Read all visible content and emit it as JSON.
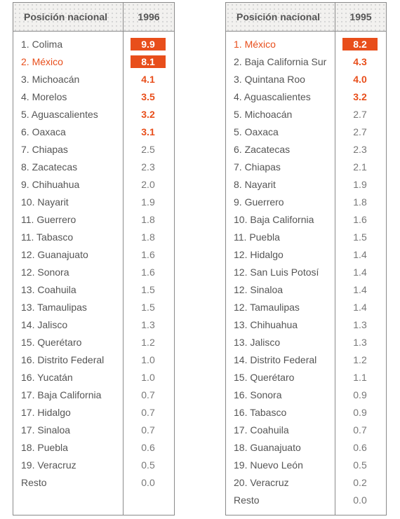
{
  "colors": {
    "accent": "#e84e1b",
    "text": "#555555",
    "muted": "#777777",
    "border": "#8a8a8a"
  },
  "tables": [
    {
      "header_label": "Posición nacional",
      "year": "1996",
      "rows": [
        {
          "name": "1. Colima",
          "value": "9.9",
          "style": "box",
          "hl": false
        },
        {
          "name": "2. México",
          "value": "8.1",
          "style": "box",
          "hl": true
        },
        {
          "name": "3. Michoacán",
          "value": "4.1",
          "style": "bold",
          "hl": false
        },
        {
          "name": "4. Morelos",
          "value": "3.5",
          "style": "bold",
          "hl": false
        },
        {
          "name": "5. Aguascalientes",
          "value": "3.2",
          "style": "bold",
          "hl": false
        },
        {
          "name": "6. Oaxaca",
          "value": "3.1",
          "style": "bold",
          "hl": false
        },
        {
          "name": "7. Chiapas",
          "value": "2.5",
          "style": "normal",
          "hl": false
        },
        {
          "name": "8. Zacatecas",
          "value": "2.3",
          "style": "normal",
          "hl": false
        },
        {
          "name": "9. Chihuahua",
          "value": "2.0",
          "style": "normal",
          "hl": false
        },
        {
          "name": "10. Nayarit",
          "value": "1.9",
          "style": "normal",
          "hl": false
        },
        {
          "name": "11. Guerrero",
          "value": "1.8",
          "style": "normal",
          "hl": false
        },
        {
          "name": "11. Tabasco",
          "value": "1.8",
          "style": "normal",
          "hl": false
        },
        {
          "name": "12. Guanajuato",
          "value": "1.6",
          "style": "normal",
          "hl": false
        },
        {
          "name": "12. Sonora",
          "value": "1.6",
          "style": "normal",
          "hl": false
        },
        {
          "name": "13. Coahuila",
          "value": "1.5",
          "style": "normal",
          "hl": false
        },
        {
          "name": "13. Tamaulipas",
          "value": "1.5",
          "style": "normal",
          "hl": false
        },
        {
          "name": "14. Jalisco",
          "value": "1.3",
          "style": "normal",
          "hl": false
        },
        {
          "name": "15. Querétaro",
          "value": "1.2",
          "style": "normal",
          "hl": false
        },
        {
          "name": "16. Distrito Federal",
          "value": "1.0",
          "style": "normal",
          "hl": false
        },
        {
          "name": "16. Yucatán",
          "value": "1.0",
          "style": "normal",
          "hl": false
        },
        {
          "name": "17. Baja California",
          "value": "0.7",
          "style": "normal",
          "hl": false
        },
        {
          "name": "17. Hidalgo",
          "value": "0.7",
          "style": "normal",
          "hl": false
        },
        {
          "name": "17. Sinaloa",
          "value": "0.7",
          "style": "normal",
          "hl": false
        },
        {
          "name": "18. Puebla",
          "value": "0.6",
          "style": "normal",
          "hl": false
        },
        {
          "name": "19. Veracruz",
          "value": "0.5",
          "style": "normal",
          "hl": false
        },
        {
          "name": "Resto",
          "value": "0.0",
          "style": "normal",
          "hl": false
        }
      ]
    },
    {
      "header_label": "Posición nacional",
      "year": "1995",
      "rows": [
        {
          "name": "1. México",
          "value": "8.2",
          "style": "box",
          "hl": true
        },
        {
          "name": "2. Baja California Sur",
          "value": "4.3",
          "style": "bold",
          "hl": false
        },
        {
          "name": "3. Quintana Roo",
          "value": "4.0",
          "style": "bold",
          "hl": false
        },
        {
          "name": "4. Aguascalientes",
          "value": "3.2",
          "style": "bold",
          "hl": false
        },
        {
          "name": "5. Michoacán",
          "value": "2.7",
          "style": "normal",
          "hl": false
        },
        {
          "name": "5. Oaxaca",
          "value": "2.7",
          "style": "normal",
          "hl": false
        },
        {
          "name": "6. Zacatecas",
          "value": "2.3",
          "style": "normal",
          "hl": false
        },
        {
          "name": "7. Chiapas",
          "value": "2.1",
          "style": "normal",
          "hl": false
        },
        {
          "name": "8. Nayarit",
          "value": "1.9",
          "style": "normal",
          "hl": false
        },
        {
          "name": "9. Guerrero",
          "value": "1.8",
          "style": "normal",
          "hl": false
        },
        {
          "name": "10. Baja California",
          "value": "1.6",
          "style": "normal",
          "hl": false
        },
        {
          "name": "11. Puebla",
          "value": "1.5",
          "style": "normal",
          "hl": false
        },
        {
          "name": "12. Hidalgo",
          "value": "1.4",
          "style": "normal",
          "hl": false
        },
        {
          "name": "12. San Luis Potosí",
          "value": "1.4",
          "style": "normal",
          "hl": false
        },
        {
          "name": "12. Sinaloa",
          "value": "1.4",
          "style": "normal",
          "hl": false
        },
        {
          "name": "12. Tamaulipas",
          "value": "1.4",
          "style": "normal",
          "hl": false
        },
        {
          "name": "13. Chihuahua",
          "value": "1.3",
          "style": "normal",
          "hl": false
        },
        {
          "name": "13. Jalisco",
          "value": "1.3",
          "style": "normal",
          "hl": false
        },
        {
          "name": "14. Distrito Federal",
          "value": "1.2",
          "style": "normal",
          "hl": false
        },
        {
          "name": "15. Querétaro",
          "value": "1.1",
          "style": "normal",
          "hl": false
        },
        {
          "name": "16. Sonora",
          "value": "0.9",
          "style": "normal",
          "hl": false
        },
        {
          "name": "16. Tabasco",
          "value": "0.9",
          "style": "normal",
          "hl": false
        },
        {
          "name": "17. Coahuila",
          "value": "0.7",
          "style": "normal",
          "hl": false
        },
        {
          "name": "18. Guanajuato",
          "value": "0.6",
          "style": "normal",
          "hl": false
        },
        {
          "name": "19. Nuevo León",
          "value": "0.5",
          "style": "normal",
          "hl": false
        },
        {
          "name": "20. Veracruz",
          "value": "0.2",
          "style": "normal",
          "hl": false
        },
        {
          "name": "Resto",
          "value": "0.0",
          "style": "normal",
          "hl": false
        }
      ]
    }
  ]
}
